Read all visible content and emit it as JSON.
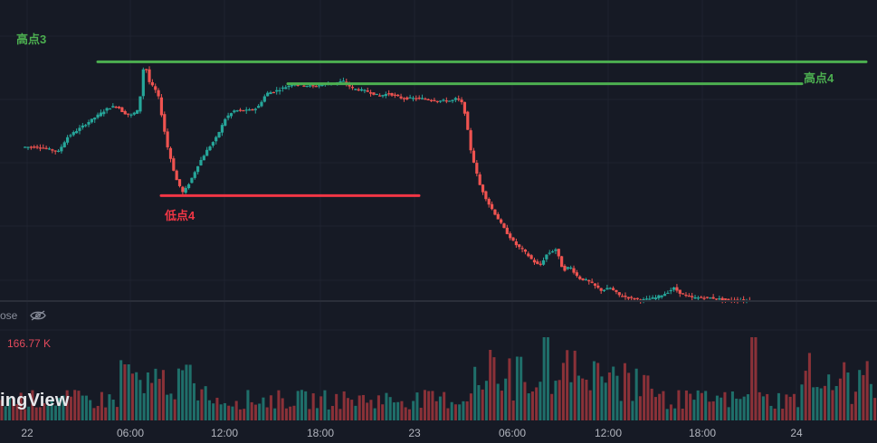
{
  "chart_data": {
    "type": "candlestick",
    "price_ylim": [
      0,
      100
    ],
    "x_ticks": [
      {
        "label": "22",
        "t": 4
      },
      {
        "label": "06:00",
        "t": 118
      },
      {
        "label": "12:00",
        "t": 222
      },
      {
        "label": "18:00",
        "t": 328
      },
      {
        "label": "23",
        "t": 432
      },
      {
        "label": "06:00",
        "t": 540
      },
      {
        "label": "12:00",
        "t": 646
      },
      {
        "label": "18:00",
        "t": 750
      },
      {
        "label": "24",
        "t": 854
      }
    ],
    "price_path": [
      [
        0,
        63
      ],
      [
        20,
        63
      ],
      [
        40,
        61
      ],
      [
        50,
        67
      ],
      [
        65,
        71
      ],
      [
        80,
        75
      ],
      [
        95,
        79
      ],
      [
        105,
        80
      ],
      [
        112,
        77
      ],
      [
        120,
        76
      ],
      [
        128,
        78
      ],
      [
        132,
        87
      ],
      [
        135,
        99
      ],
      [
        140,
        90
      ],
      [
        150,
        85
      ],
      [
        160,
        64
      ],
      [
        170,
        50
      ],
      [
        178,
        44
      ],
      [
        186,
        49
      ],
      [
        195,
        56
      ],
      [
        205,
        62
      ],
      [
        215,
        67
      ],
      [
        225,
        75
      ],
      [
        235,
        78
      ],
      [
        250,
        78
      ],
      [
        260,
        79
      ],
      [
        270,
        85
      ],
      [
        280,
        86
      ],
      [
        300,
        89
      ],
      [
        320,
        88
      ],
      [
        340,
        89
      ],
      [
        355,
        90
      ],
      [
        365,
        87
      ],
      [
        380,
        86
      ],
      [
        395,
        84
      ],
      [
        405,
        85
      ],
      [
        420,
        83
      ],
      [
        440,
        83
      ],
      [
        460,
        82
      ],
      [
        475,
        82
      ],
      [
        480,
        83
      ],
      [
        485,
        82
      ],
      [
        490,
        76
      ],
      [
        495,
        63
      ],
      [
        505,
        48
      ],
      [
        515,
        40
      ],
      [
        525,
        34
      ],
      [
        535,
        28
      ],
      [
        545,
        23
      ],
      [
        555,
        20
      ],
      [
        565,
        16
      ],
      [
        572,
        14
      ],
      [
        580,
        19
      ],
      [
        590,
        21
      ],
      [
        598,
        12
      ],
      [
        605,
        14
      ],
      [
        615,
        9
      ],
      [
        625,
        8
      ],
      [
        640,
        4
      ],
      [
        650,
        5
      ],
      [
        660,
        2
      ],
      [
        670,
        1
      ],
      [
        685,
        0
      ],
      [
        700,
        1
      ],
      [
        712,
        3
      ],
      [
        720,
        5
      ],
      [
        727,
        3
      ],
      [
        740,
        1
      ],
      [
        760,
        1
      ],
      [
        780,
        0
      ],
      [
        800,
        0
      ],
      [
        806,
        0
      ]
    ],
    "annotations": [
      {
        "label": "高点3",
        "type": "resistance",
        "price": 98,
        "t_start": 80,
        "t_end": 930
      },
      {
        "label": "高点4",
        "type": "resistance",
        "price": 89,
        "t_start": 290,
        "t_end": 860
      },
      {
        "label": "低点4",
        "type": "support",
        "price": 43,
        "t_start": 150,
        "t_end": 436
      }
    ],
    "volume_value": "166.77 K"
  },
  "volume_legend": {
    "label": "ose"
  },
  "watermark": "ingView",
  "colors": {
    "up": "#26a69a",
    "down": "#ef5350",
    "high_line": "#4caf50",
    "low_line": "#f23645",
    "bg": "#161a25"
  }
}
